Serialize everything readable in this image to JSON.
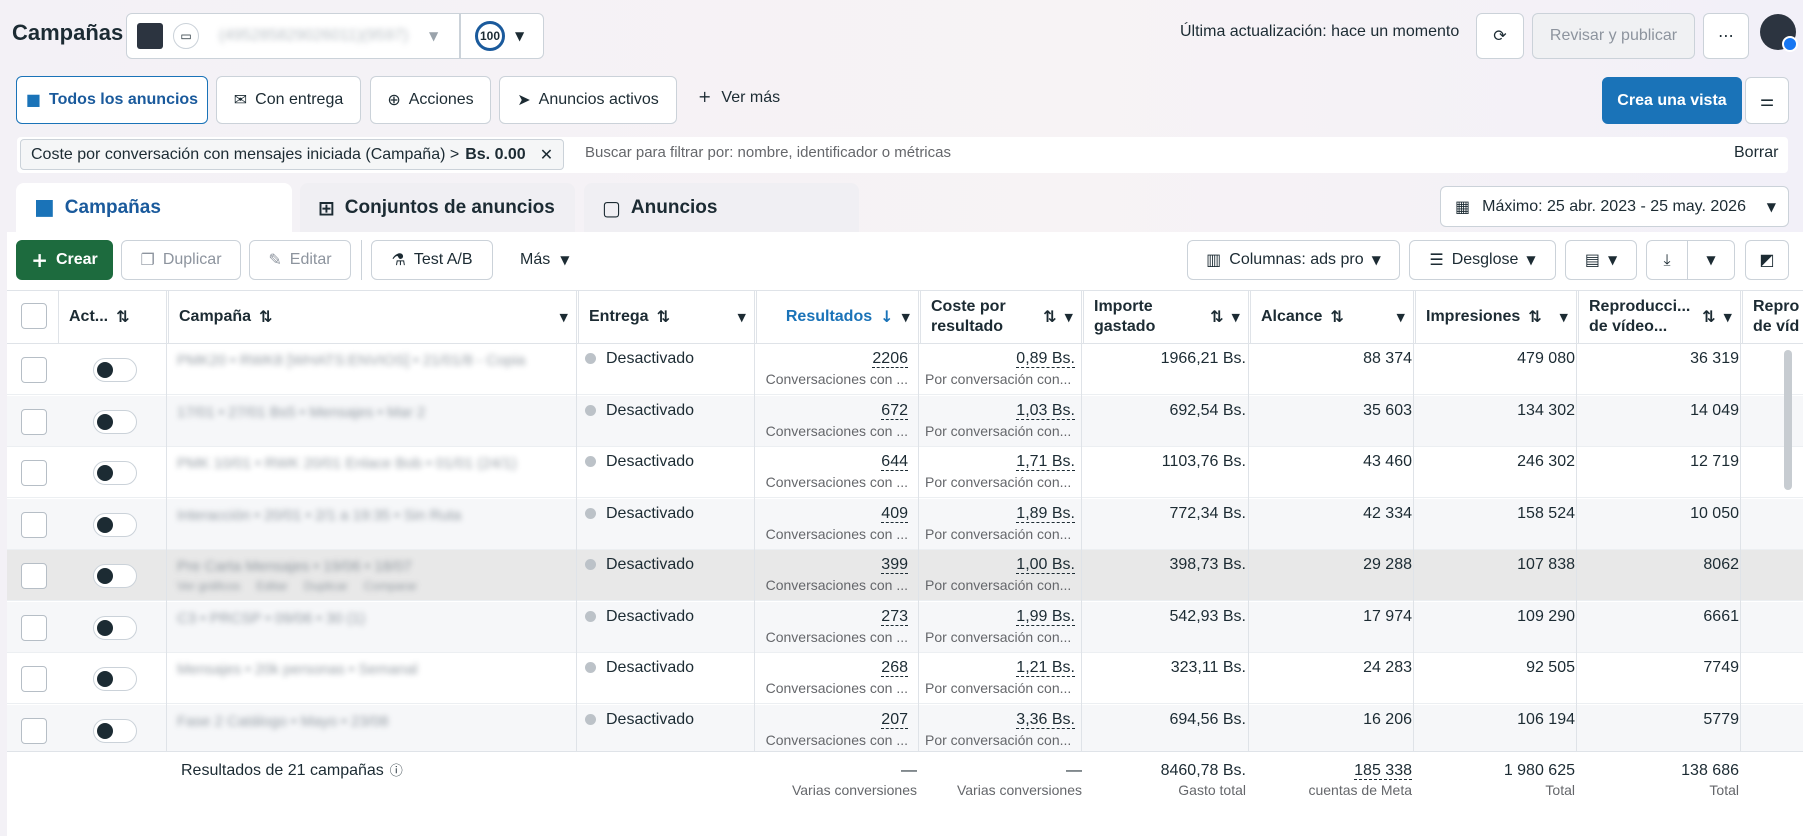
{
  "header": {
    "title": "Campañas",
    "account_name": "(495285829026011)(9597)",
    "score": "100",
    "last_update": "Última actualización: hace un momento",
    "review_publish": "Revisar y publicar"
  },
  "filters": {
    "tabs": [
      "Todos los anuncios",
      "Con entrega",
      "Acciones",
      "Anuncios activos"
    ],
    "see_more": "Ver más",
    "create_view": "Crea una vista"
  },
  "search": {
    "chip_label": "Coste por conversación con mensajes iniciada (Campaña) >",
    "chip_value": "Bs. 0.00",
    "placeholder": "Buscar para filtrar por: nombre, identificador o métricas",
    "clear": "Borrar"
  },
  "levels": {
    "campaigns": "Campañas",
    "adsets": "Conjuntos de anuncios",
    "ads": "Anuncios",
    "date_range": "Máximo: 25 abr. 2023 - 25 may. 2026"
  },
  "toolbar": {
    "create": "Crear",
    "duplicate": "Duplicar",
    "edit": "Editar",
    "ab_test": "Test A/B",
    "more": "Más",
    "columns": "Columnas: ads pro",
    "breakdown": "Desglose"
  },
  "columns": {
    "active": "Act...",
    "campaign": "Campaña",
    "delivery": "Entrega",
    "results": "Resultados",
    "cost_per_result_1": "Coste por",
    "cost_per_result_2": "resultado",
    "amount_spent_1": "Importe",
    "amount_spent_2": "gastado",
    "reach": "Alcance",
    "impressions": "Impresiones",
    "video_plays_1": "Reproducci...",
    "video_plays_2": "de vídeo...",
    "video_extra_1": "Repro",
    "video_extra_2": "de víd"
  },
  "rows": [
    {
      "campaign": "PMK20 • RWK8 [WHATS:ENVIOS] • 21/01/8 - Copia",
      "delivery": "Desactivado",
      "results": "2206",
      "results_sub": "Conversaciones con ...",
      "cost": "0,89 Bs.",
      "cost_sub": "Por conversación con...",
      "spent": "1966,21 Bs.",
      "reach": "88 374",
      "impressions": "479 080",
      "video": "36 319"
    },
    {
      "campaign": "17/01 • 27/01 Bs5 • Mensajes • Mar 2",
      "delivery": "Desactivado",
      "results": "672",
      "results_sub": "Conversaciones con ...",
      "cost": "1,03 Bs.",
      "cost_sub": "Por conversación con...",
      "spent": "692,54 Bs.",
      "reach": "35 603",
      "impressions": "134 302",
      "video": "14 049"
    },
    {
      "campaign": "PMK 10/01 • RWK 20/01 Enlace Bob • 01/01 (24/1)",
      "delivery": "Desactivado",
      "results": "644",
      "results_sub": "Conversaciones con ...",
      "cost": "1,71 Bs.",
      "cost_sub": "Por conversación con...",
      "spent": "1103,76 Bs.",
      "reach": "43 460",
      "impressions": "246 302",
      "video": "12 719"
    },
    {
      "campaign": "Interacción • 20/01 • 2/1 a 19:35 • Sin Ruta",
      "delivery": "Desactivado",
      "results": "409",
      "results_sub": "Conversaciones con ...",
      "cost": "1,89 Bs.",
      "cost_sub": "Por conversación con...",
      "spent": "772,34 Bs.",
      "reach": "42 334",
      "impressions": "158 524",
      "video": "10 050"
    },
    {
      "campaign": "Pre Carta Mensajes • 19/06 • 18/07",
      "delivery": "Desactivado",
      "results": "399",
      "results_sub": "Conversaciones con ...",
      "cost": "1,00 Bs.",
      "cost_sub": "Por conversación con...",
      "spent": "398,73 Bs.",
      "reach": "29 288",
      "impressions": "107 838",
      "video": "8062"
    },
    {
      "campaign": "C3 • PRCSP • 09/06 • 30 (1)",
      "delivery": "Desactivado",
      "results": "273",
      "results_sub": "Conversaciones con ...",
      "cost": "1,99 Bs.",
      "cost_sub": "Por conversación con...",
      "spent": "542,93 Bs.",
      "reach": "17 974",
      "impressions": "109 290",
      "video": "6661"
    },
    {
      "campaign": "Mensajes • 20k personas • Semanal",
      "delivery": "Desactivado",
      "results": "268",
      "results_sub": "Conversaciones con ...",
      "cost": "1,21 Bs.",
      "cost_sub": "Por conversación con...",
      "spent": "323,11 Bs.",
      "reach": "24 283",
      "impressions": "92 505",
      "video": "7749"
    },
    {
      "campaign": "Fase 2 Catálogo • Mayo • 23/08",
      "delivery": "Desactivado",
      "results": "207",
      "results_sub": "Conversaciones con ...",
      "cost": "3,36 Bs.",
      "cost_sub": "Por conversación con...",
      "spent": "694,56 Bs.",
      "reach": "16 206",
      "impressions": "106 194",
      "video": "5779"
    }
  ],
  "row_actions": {
    "view": "Ver gráficos",
    "edit": "Editar",
    "duplicate": "Duplicar",
    "compare": "Comparar"
  },
  "totals": {
    "label": "Resultados de 21 campañas",
    "results": "—",
    "results_sub": "Varias conversiones",
    "cost": "—",
    "cost_sub": "Varias conversiones",
    "spent": "8460,78 Bs.",
    "spent_sub": "Gasto total",
    "reach": "185 338",
    "reach_sub": "cuentas de Meta",
    "impressions": "1 980 625",
    "impressions_sub": "Total",
    "video": "138 686",
    "video_sub": "Total"
  },
  "colors": {
    "accent": "#1a73b8",
    "create": "#1d6b3e",
    "toggle_knob": "#1c2b33"
  }
}
